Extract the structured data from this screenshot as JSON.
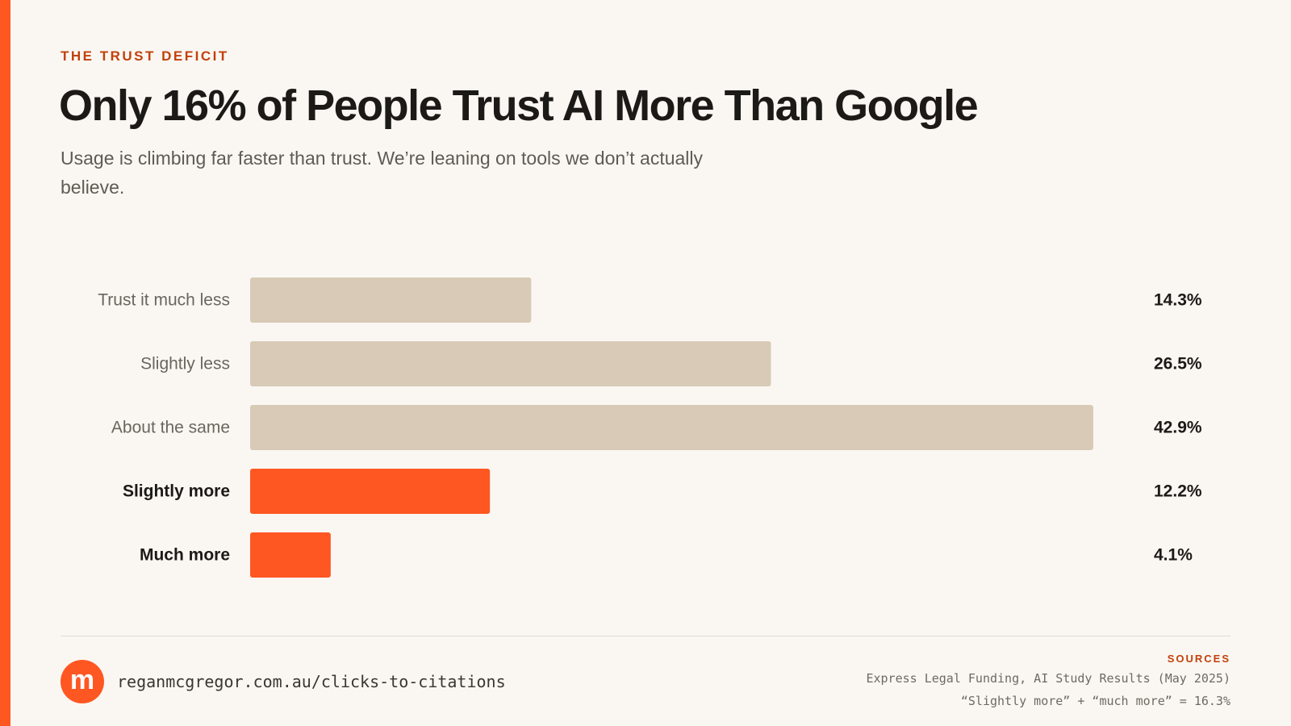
{
  "header": {
    "eyebrow": "THE TRUST DEFICIT",
    "title": "Only 16% of People Trust AI More Than Google",
    "subtitle": "Usage is climbing far faster than trust. We’re leaning on tools we don’t actually believe."
  },
  "chart_data": {
    "type": "bar",
    "orientation": "horizontal",
    "categories": [
      "Trust it much less",
      "Slightly less",
      "About the same",
      "Slightly more",
      "Much more"
    ],
    "values": [
      14.3,
      26.5,
      42.9,
      12.2,
      4.1
    ],
    "value_labels": [
      "14.3%",
      "26.5%",
      "42.9%",
      "12.2%",
      "4.1%"
    ],
    "highlighted": [
      false,
      false,
      false,
      true,
      true
    ],
    "xlim": [
      0,
      42.9
    ],
    "colors": {
      "default": "#d8cab7",
      "highlight": "#ff5722"
    },
    "grid": false,
    "legend": "none"
  },
  "footer": {
    "logo_letter": "m",
    "url": "reganmcgregor.com.au/clicks-to-citations",
    "sources_label": "SOURCES",
    "source_lines": [
      "Express Legal Funding, AI Study Results (May 2025)",
      "“Slightly more” + “much more” = 16.3%"
    ]
  },
  "colors": {
    "accent": "#ff5722",
    "eyebrow": "#c2410c",
    "background": "#faf7f2"
  }
}
